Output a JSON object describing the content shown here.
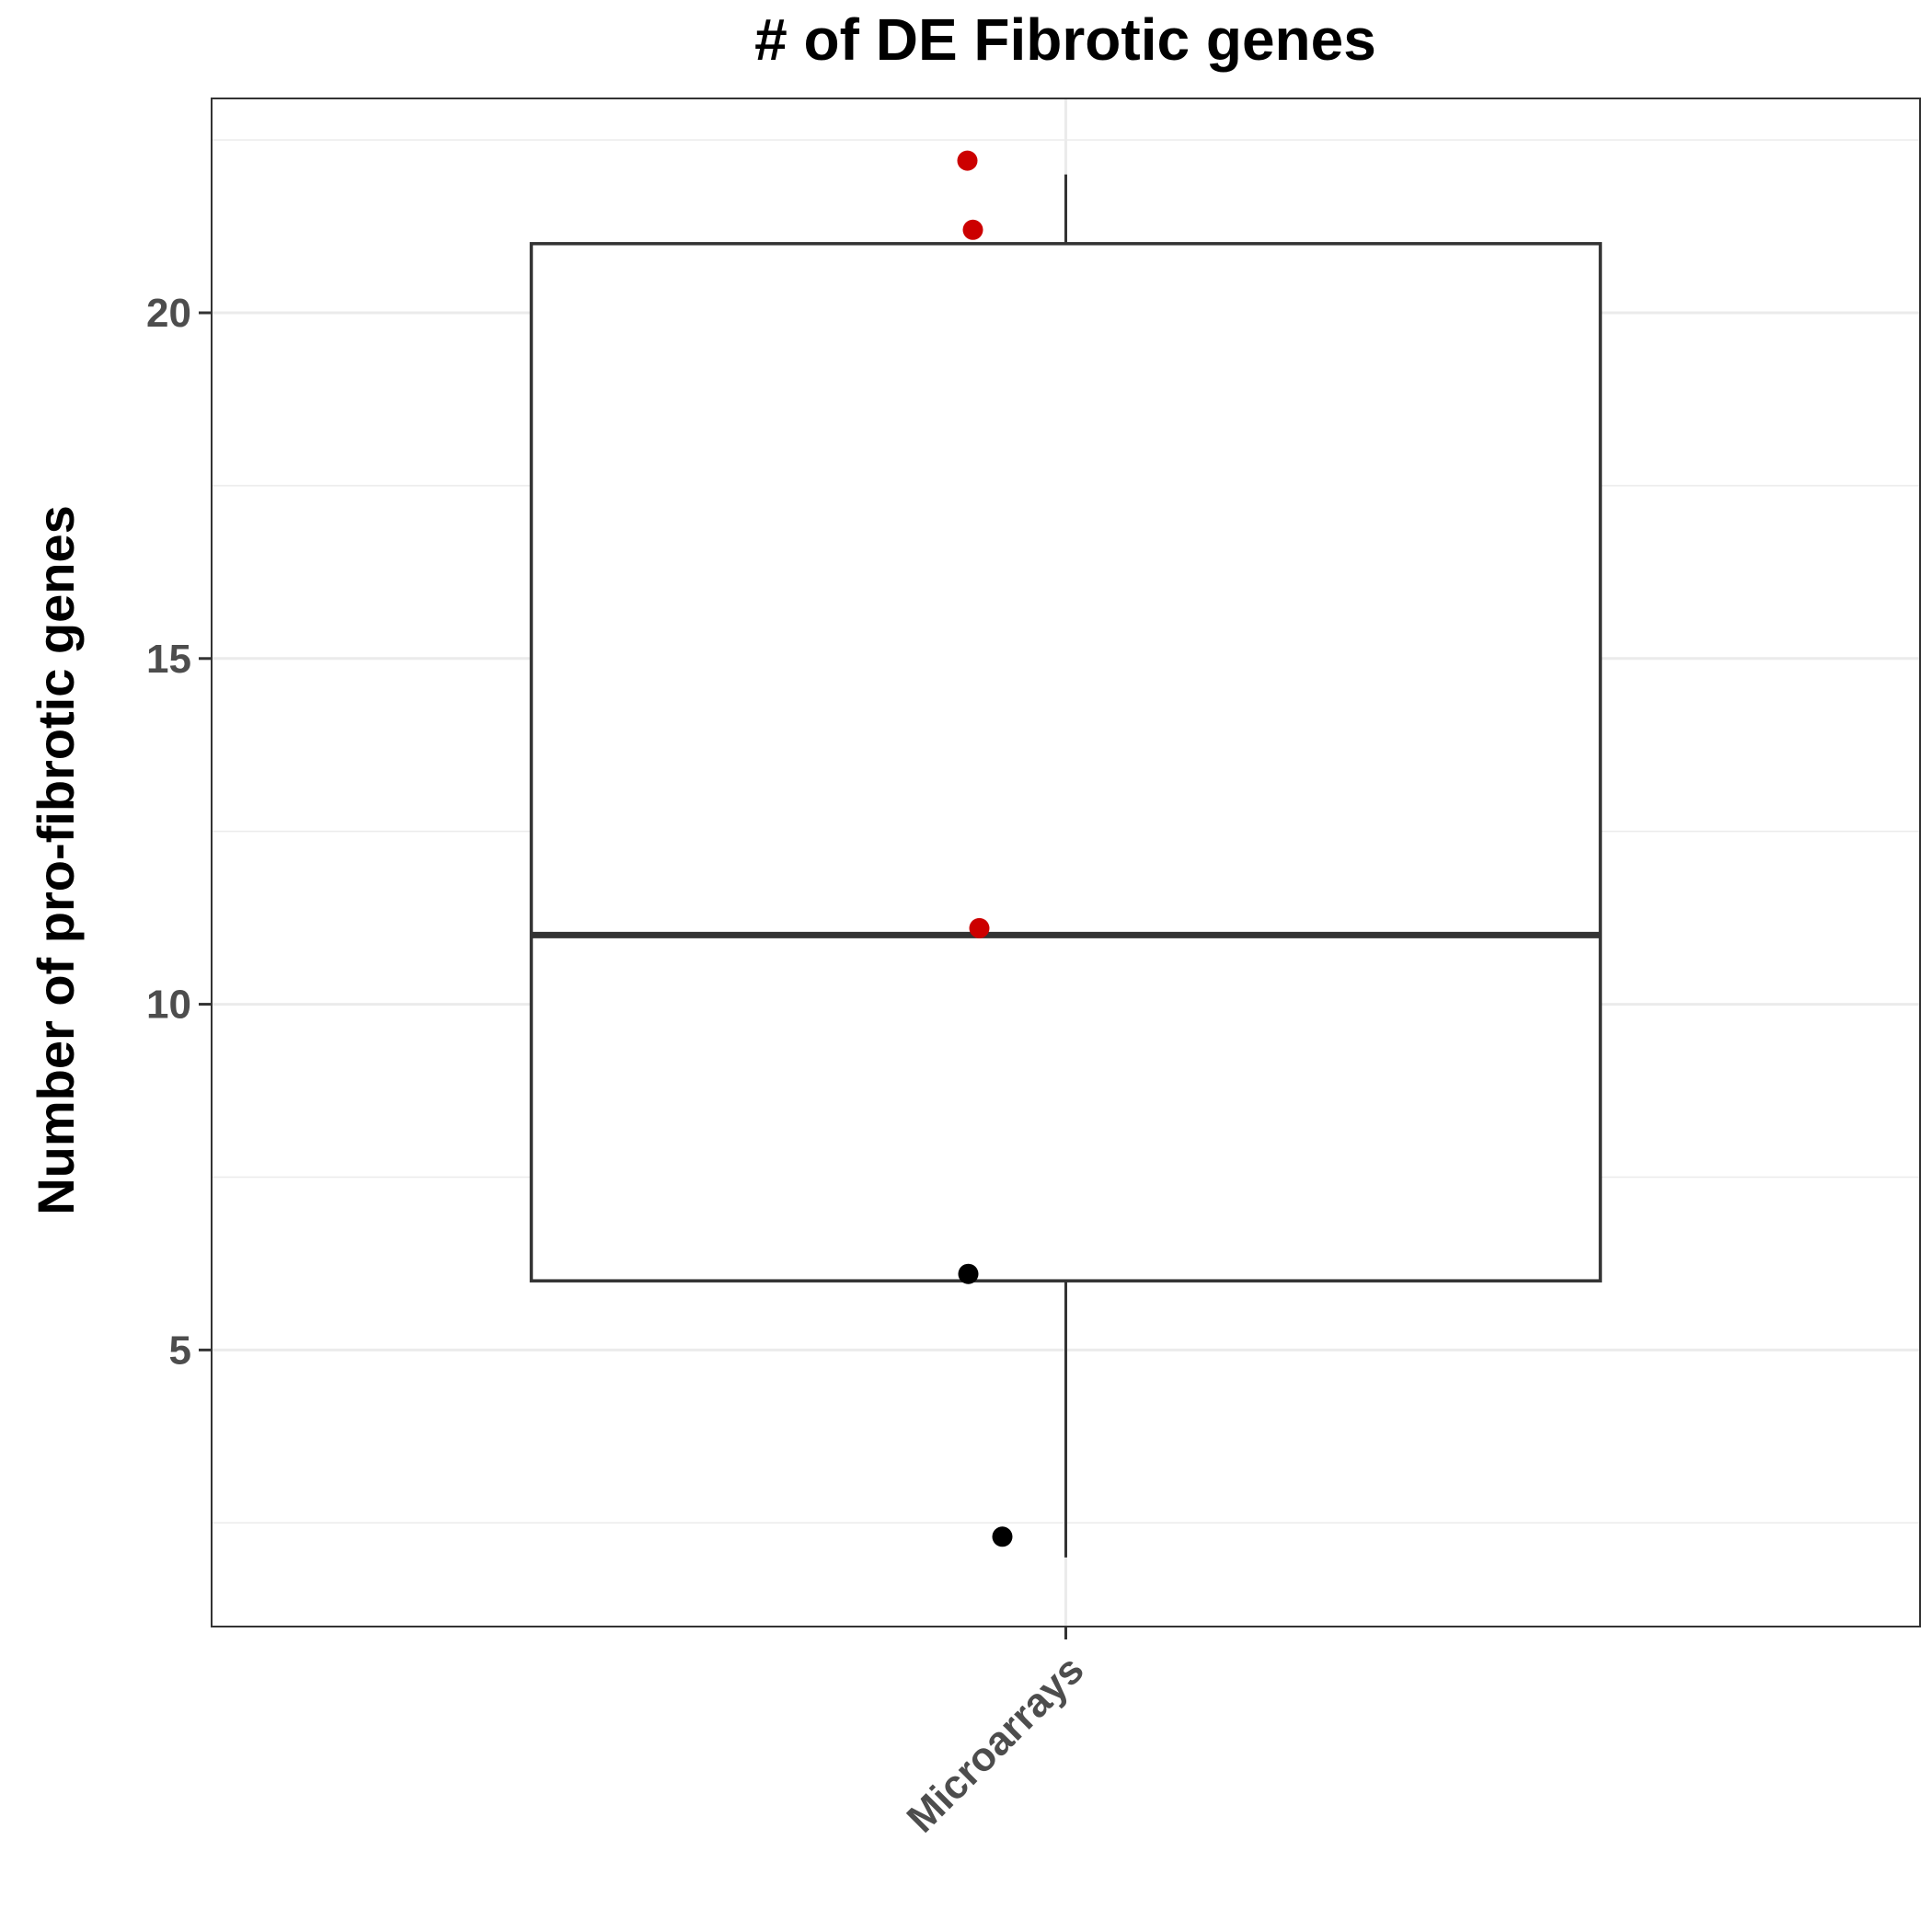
{
  "chart_data": {
    "type": "box",
    "title": "# of DE Fibrotic genes",
    "xlabel": "",
    "ylabel": "Number of pro-fibrotic genes",
    "categories": [
      "Microarrays"
    ],
    "ylim": [
      1.0,
      23.1
    ],
    "yticks": [
      5,
      10,
      15,
      20
    ],
    "grid": true,
    "box": {
      "category": "Microarrays",
      "whisker_low": 2,
      "q1": 6,
      "median": 11,
      "q3": 21,
      "whisker_high": 22
    },
    "points": [
      {
        "y": 22.2,
        "color": "#cc0000"
      },
      {
        "y": 21.2,
        "color": "#cc0000"
      },
      {
        "y": 11.1,
        "color": "#cc0000"
      },
      {
        "y": 6.1,
        "color": "#000000"
      },
      {
        "y": 2.3,
        "color": "#000000"
      }
    ]
  }
}
